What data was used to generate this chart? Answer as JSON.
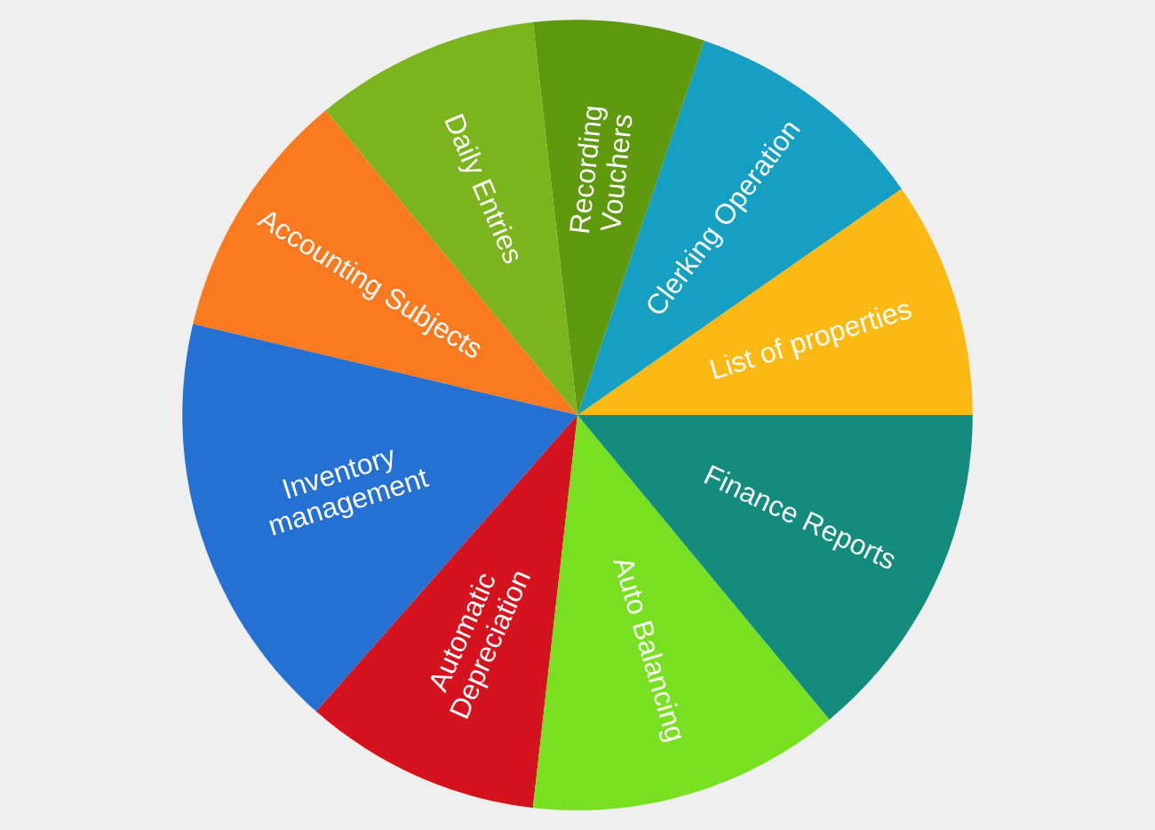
{
  "chart_data": {
    "type": "pie",
    "categories": [
      "List of properties",
      "Clerking Operation",
      "Recording\nVouchers",
      "Daily Entries",
      "Accounting Subjects",
      "Inventory\nmanagement",
      "Automatic\nDepreciation",
      "Auto Balancing",
      "Finance Reports"
    ],
    "values": [
      9.7,
      10.1,
      7.0,
      9.2,
      10.3,
      17.2,
      9.7,
      12.8,
      14.0
    ],
    "colors": [
      "#fdb913",
      "#149fc3",
      "#5f9a0e",
      "#7cb41e",
      "#fb7a20",
      "#2470d3",
      "#d4131e",
      "#78e020",
      "#138c7e"
    ]
  }
}
